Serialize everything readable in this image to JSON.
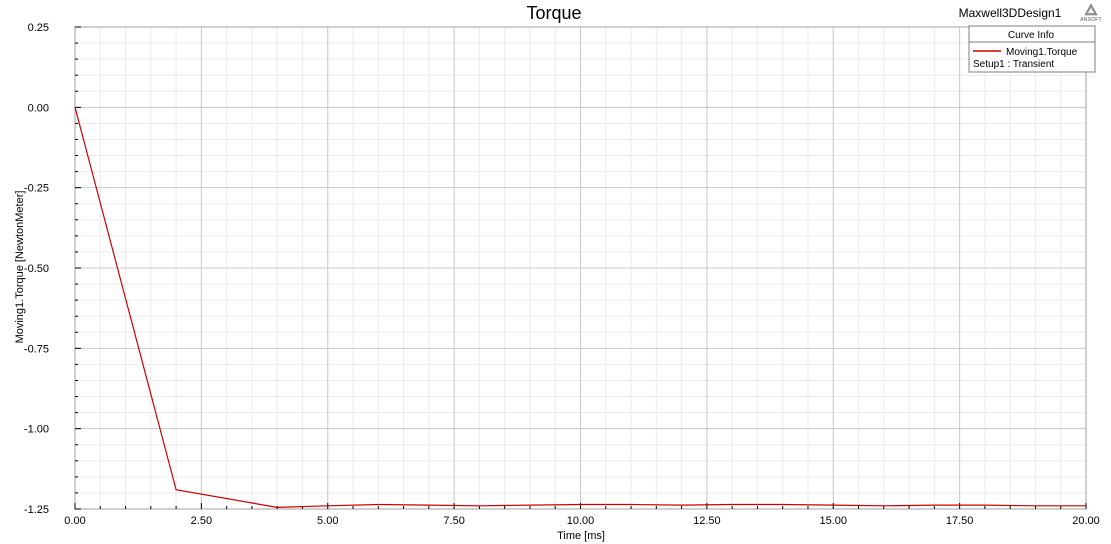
{
  "header": {
    "title": "Torque",
    "design_name": "Maxwell3DDesign1",
    "logo_text": "ANSOFT"
  },
  "legend": {
    "title": "Curve Info",
    "entries": [
      {
        "name": "Moving1.Torque",
        "subtitle": "Setup1 : Transient",
        "color": "#cc0000"
      }
    ]
  },
  "chart_data": {
    "type": "line",
    "title": "Torque",
    "xlabel": "Time [ms]",
    "ylabel": "Moving1.Torque [NewtonMeter]",
    "xlim": [
      0,
      20
    ],
    "ylim": [
      -1.25,
      0.25
    ],
    "x_ticks": [
      "0.00",
      "2.50",
      "5.00",
      "7.50",
      "10.00",
      "12.50",
      "15.00",
      "17.50",
      "20.00"
    ],
    "y_ticks": [
      "0.25",
      "0.00",
      "-0.25",
      "-0.50",
      "-0.75",
      "-1.00",
      "-1.25"
    ],
    "grid": true,
    "legend_position": "top-right",
    "series": [
      {
        "name": "Moving1.Torque",
        "color": "#cc0000",
        "x": [
          0,
          2,
          4,
          5,
          6,
          7,
          8,
          9,
          10,
          11,
          12,
          13,
          14,
          15,
          16,
          17,
          18,
          19,
          20
        ],
        "y": [
          0.0,
          -1.19,
          -1.245,
          -1.24,
          -1.236,
          -1.238,
          -1.24,
          -1.238,
          -1.236,
          -1.236,
          -1.238,
          -1.236,
          -1.236,
          -1.238,
          -1.24,
          -1.238,
          -1.238,
          -1.24,
          -1.24
        ]
      }
    ]
  }
}
